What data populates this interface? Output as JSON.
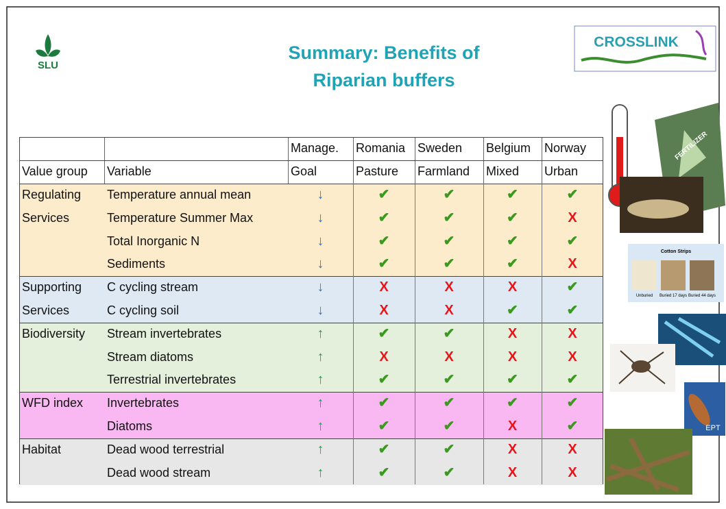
{
  "header": {
    "logo_text": "SLU",
    "title_lines": [
      "Summary: Benefits of",
      "Riparian buffers"
    ],
    "partner_logo": "CROSSLINK"
  },
  "images": {
    "fertilizer": "FERTILIZER",
    "cotton_title": "Cotton Strips",
    "cotton_labels": [
      "Unburied",
      "Buried 17 days",
      "Buried 44 days"
    ],
    "ept": "EPT"
  },
  "table": {
    "header_rows": [
      [
        null,
        null,
        "Manage.",
        "Romania",
        "Sweden",
        "Belgium",
        "Norway"
      ],
      [
        "Value group",
        "Variable",
        "Goal",
        "Pasture",
        "Farmland",
        "Mixed",
        "Urban"
      ]
    ],
    "symbol_colors": {
      "✔": "#3a9a1e",
      "X": "#e8141a",
      "↓": "#2a78c8",
      "↑": "#17a447"
    },
    "groups": [
      {
        "label": [
          "Regulating",
          "Services"
        ],
        "color": "#fdeccb",
        "rows": [
          {
            "variable": "Temperature annual mean",
            "goal": "↓",
            "marks": [
              "✔",
              "✔",
              "✔",
              "✔"
            ]
          },
          {
            "variable": "Temperature Summer Max",
            "goal": "↓",
            "marks": [
              "✔",
              "✔",
              "✔",
              "X"
            ]
          },
          {
            "variable": "Total Inorganic N",
            "goal": "↓",
            "marks": [
              "✔",
              "✔",
              "✔",
              "✔"
            ]
          },
          {
            "variable": "Sediments",
            "goal": "↓",
            "marks": [
              "✔",
              "✔",
              "✔",
              "X"
            ]
          }
        ]
      },
      {
        "label": [
          "Supporting",
          "Services"
        ],
        "color": "#dfe9f4",
        "rows": [
          {
            "variable": "C cycling stream",
            "goal": "↓",
            "marks": [
              "X",
              "X",
              "X",
              "✔"
            ]
          },
          {
            "variable": "C cycling soil",
            "goal": "↓",
            "marks": [
              "X",
              "X",
              "✔",
              "✔"
            ]
          }
        ]
      },
      {
        "label": [
          "Biodiversity"
        ],
        "color": "#e4efdc",
        "rows": [
          {
            "variable": "Stream invertebrates",
            "goal": "↑",
            "marks": [
              "✔",
              "✔",
              "X",
              "X"
            ]
          },
          {
            "variable": "Stream diatoms",
            "goal": "↑",
            "marks": [
              "X",
              "X",
              "X",
              "X"
            ]
          },
          {
            "variable": "Terrestrial invertebrates",
            "goal": "↑",
            "marks": [
              "✔",
              "✔",
              "✔",
              "✔"
            ]
          }
        ]
      },
      {
        "label": [
          "WFD index"
        ],
        "color": "#f9b8f1",
        "rows": [
          {
            "variable": "Invertebrates",
            "goal": "↑",
            "marks": [
              "✔",
              "✔",
              "✔",
              "✔"
            ]
          },
          {
            "variable": "Diatoms",
            "goal": "↑",
            "marks": [
              "✔",
              "✔",
              "X",
              "✔"
            ]
          }
        ]
      },
      {
        "label": [
          "Habitat"
        ],
        "color": "#e7e7e7",
        "rows": [
          {
            "variable": "Dead wood terrestrial",
            "goal": "↑",
            "marks": [
              "✔",
              "✔",
              "X",
              "X"
            ]
          },
          {
            "variable": "Dead wood stream",
            "goal": "↑",
            "marks": [
              "✔",
              "✔",
              "X",
              "X"
            ]
          }
        ]
      }
    ]
  }
}
